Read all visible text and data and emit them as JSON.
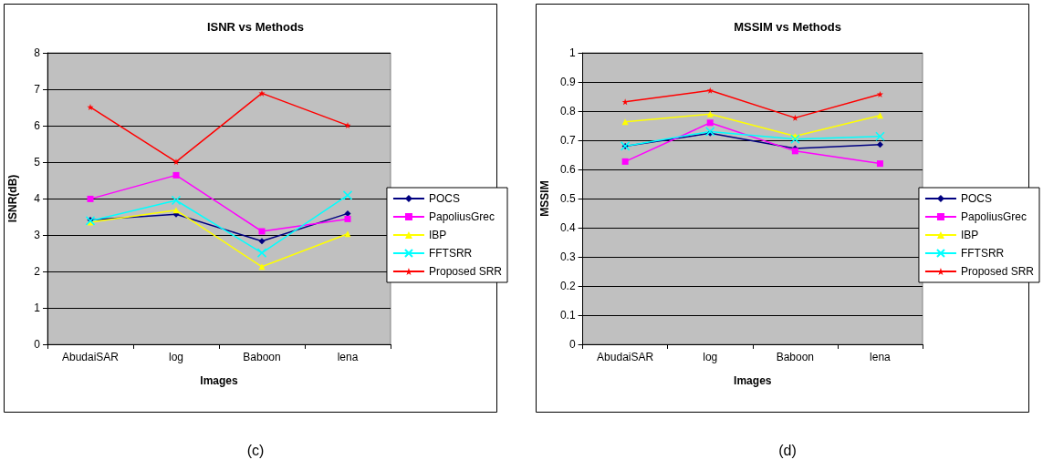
{
  "chart_data": [
    {
      "type": "line",
      "title": "ISNR vs Methods",
      "xlabel": "Images",
      "ylabel": "ISNR(dB)",
      "categories": [
        "AbudaiSAR",
        "log",
        "Baboon",
        "lena"
      ],
      "ylim": [
        0,
        8
      ],
      "yticks": [
        0,
        1,
        2,
        3,
        4,
        5,
        6,
        7,
        8
      ],
      "grid": "y",
      "legend": "right",
      "annotations": [
        "(c)"
      ],
      "series": [
        {
          "name": "POCS",
          "color": "#000080",
          "marker": "diamond",
          "values": [
            3.41,
            3.57,
            2.83,
            3.59
          ]
        },
        {
          "name": "PapoliusGrec",
          "color": "#ff00ff",
          "marker": "square",
          "values": [
            3.99,
            4.64,
            3.1,
            3.44
          ]
        },
        {
          "name": "IBP",
          "color": "#ffff00",
          "marker": "triangle",
          "values": [
            3.35,
            3.68,
            2.13,
            3.03
          ]
        },
        {
          "name": "FFTSRR",
          "color": "#00ffff",
          "marker": "cross",
          "values": [
            3.39,
            3.95,
            2.51,
            4.09
          ]
        },
        {
          "name": "Proposed SRR",
          "color": "#ff0000",
          "marker": "star",
          "values": [
            6.51,
            5.01,
            6.89,
            6.01
          ]
        }
      ]
    },
    {
      "type": "line",
      "title": "MSSIM vs Methods",
      "xlabel": "Images",
      "ylabel": "MSSIM",
      "categories": [
        "AbudaiSAR",
        "log",
        "Baboon",
        "lena"
      ],
      "ylim": [
        0,
        1
      ],
      "yticks": [
        0,
        0.1,
        0.2,
        0.3,
        0.4,
        0.5,
        0.6,
        0.7,
        0.8,
        0.9,
        1
      ],
      "grid": "y",
      "legend": "right",
      "annotations": [
        "(d)"
      ],
      "series": [
        {
          "name": "POCS",
          "color": "#000080",
          "marker": "diamond",
          "values": [
            0.68,
            0.724,
            0.672,
            0.685
          ]
        },
        {
          "name": "PapoliusGrec",
          "color": "#ff00ff",
          "marker": "square",
          "values": [
            0.627,
            0.76,
            0.663,
            0.62
          ]
        },
        {
          "name": "IBP",
          "color": "#ffff00",
          "marker": "triangle",
          "values": [
            0.763,
            0.79,
            0.714,
            0.785
          ]
        },
        {
          "name": "FFTSRR",
          "color": "#00ffff",
          "marker": "cross",
          "values": [
            0.68,
            0.73,
            0.704,
            0.713
          ]
        },
        {
          "name": "Proposed SRR",
          "color": "#ff0000",
          "marker": "star",
          "values": [
            0.832,
            0.871,
            0.777,
            0.858
          ]
        }
      ]
    }
  ]
}
